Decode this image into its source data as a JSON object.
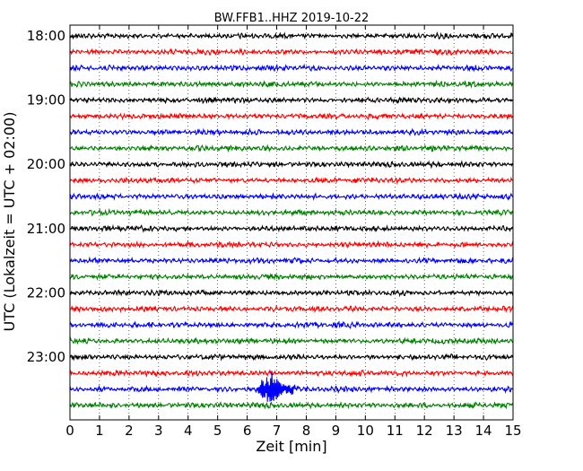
{
  "chart_data": {
    "type": "line",
    "title": "BW.FFB1..HHZ 2019-10-22",
    "xlabel": "Zeit  [min]",
    "ylabel": "UTC (Lokalzeit = UTC + 02:00)",
    "xlim": [
      0,
      15
    ],
    "x_ticks": [
      "0",
      "1",
      "2",
      "3",
      "4",
      "5",
      "6",
      "7",
      "8",
      "9",
      "10",
      "11",
      "12",
      "13",
      "14",
      "15"
    ],
    "y_tick_labels": [
      "18:00",
      "19:00",
      "20:00",
      "21:00",
      "22:00",
      "23:00"
    ],
    "grid": true,
    "trace_colors": [
      "#000000",
      "#ff0000",
      "#0000ff",
      "#008000"
    ],
    "traces": [
      {
        "start": "18:00",
        "amplitude": 1
      },
      {
        "start": "18:15",
        "amplitude": 1
      },
      {
        "start": "18:30",
        "amplitude": 1
      },
      {
        "start": "18:45",
        "amplitude": 1
      },
      {
        "start": "19:00",
        "amplitude": 1
      },
      {
        "start": "19:15",
        "amplitude": 1
      },
      {
        "start": "19:30",
        "amplitude": 1
      },
      {
        "start": "19:45",
        "amplitude": 1
      },
      {
        "start": "20:00",
        "amplitude": 1
      },
      {
        "start": "20:15",
        "amplitude": 1
      },
      {
        "start": "20:30",
        "amplitude": 1
      },
      {
        "start": "20:45",
        "amplitude": 1
      },
      {
        "start": "21:00",
        "amplitude": 1
      },
      {
        "start": "21:15",
        "amplitude": 1
      },
      {
        "start": "21:30",
        "amplitude": 1
      },
      {
        "start": "21:45",
        "amplitude": 1
      },
      {
        "start": "22:00",
        "amplitude": 1
      },
      {
        "start": "22:15",
        "amplitude": 1
      },
      {
        "start": "22:30",
        "amplitude": 1
      },
      {
        "start": "22:45",
        "amplitude": 1
      },
      {
        "start": "23:00",
        "amplitude": 1
      },
      {
        "start": "23:15",
        "amplitude": 1
      },
      {
        "start": "23:30",
        "amplitude": 1,
        "event": {
          "start_min": 6.2,
          "peak_min": 6.85,
          "end_min": 8.6,
          "peak_amplitude": 9
        }
      },
      {
        "start": "23:45",
        "amplitude": 1
      }
    ]
  }
}
